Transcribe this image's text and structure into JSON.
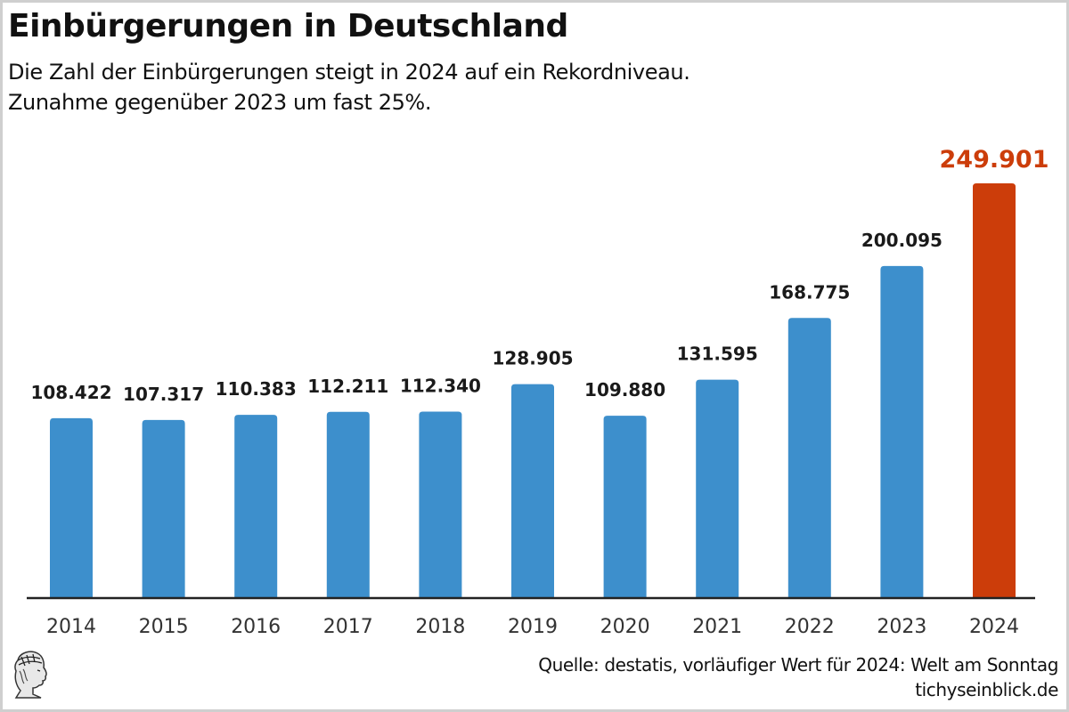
{
  "header": {
    "title": "Einbürgerungen in Deutschland",
    "subtitle_line1": "Die Zahl der Einbürgerungen steigt in 2024 auf ein Rekordniveau.",
    "subtitle_line2": "Zunahme gegenüber 2023 um fast 25%."
  },
  "footer": {
    "source": "Quelle: destatis, vorläufiger Wert für 2024: Welt am Sonntag",
    "site": "tichyseinblick.de",
    "logo_icon": "classical-head-logo"
  },
  "colors": {
    "bar": "#3d8fcc",
    "highlight": "#cc3d0a",
    "axis": "#222222"
  },
  "chart_data": {
    "type": "bar",
    "title": "Einbürgerungen in Deutschland",
    "subtitle": "Die Zahl der Einbürgerungen steigt in 2024 auf ein Rekordniveau. Zunahme gegenüber 2023 um fast 25%.",
    "xlabel": "",
    "ylabel": "",
    "categories": [
      "2014",
      "2015",
      "2016",
      "2017",
      "2018",
      "2019",
      "2020",
      "2021",
      "2022",
      "2023",
      "2024"
    ],
    "values": [
      108422,
      107317,
      110383,
      112211,
      112340,
      128905,
      109880,
      131595,
      168775,
      200095,
      249901
    ],
    "value_labels": [
      "108.422",
      "107.317",
      "110.383",
      "112.211",
      "112.340",
      "128.905",
      "109.880",
      "131.595",
      "168.775",
      "200.095",
      "249.901"
    ],
    "highlight_category": "2024",
    "ylim": [
      0,
      249901
    ],
    "grid": false,
    "legend": "none",
    "y_axis_visible": false
  }
}
